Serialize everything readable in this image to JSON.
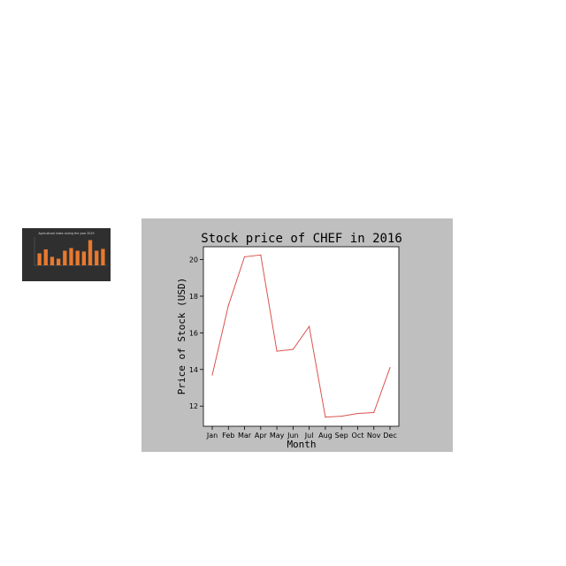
{
  "thumbnail": {
    "title": "Agricultural index during the year 2019",
    "bar_values": [
      0.45,
      0.6,
      0.32,
      0.25,
      0.55,
      0.65,
      0.55,
      0.52,
      0.95,
      0.55,
      0.62
    ],
    "bar_color": "#e8792f",
    "background": "#2f2f2f"
  },
  "chart_data": {
    "type": "line",
    "title": "Stock price of CHEF in 2016",
    "xlabel": "Month",
    "ylabel": "Price of Stock (USD)",
    "categories": [
      "Jan",
      "Feb",
      "Mar",
      "Apr",
      "May",
      "Jun",
      "Jul",
      "Aug",
      "Sep",
      "Oct",
      "Nov",
      "Dec"
    ],
    "values": [
      13.7,
      17.5,
      20.15,
      20.25,
      15.0,
      15.1,
      16.35,
      11.4,
      11.45,
      11.6,
      11.65,
      14.1
    ],
    "ylim": [
      10.9,
      20.7
    ],
    "yticks": [
      12,
      14,
      16,
      18,
      20
    ],
    "line_color": "#d9534f",
    "panel_background": "#bfbfbf",
    "grid": false
  }
}
